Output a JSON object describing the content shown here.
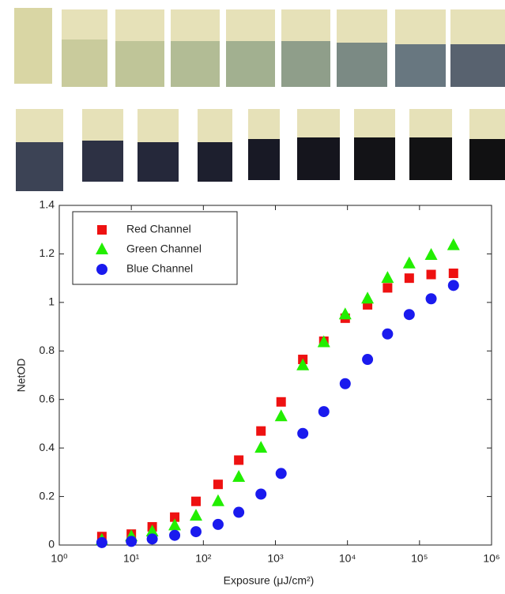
{
  "chart_data": {
    "type": "scatter",
    "xlabel": "Exposure (μJ/cm²)",
    "ylabel": "NetOD",
    "x": [
      3.9,
      10,
      19.5,
      40,
      79,
      160,
      310,
      630,
      1200,
      2400,
      4700,
      9300,
      19000,
      36000,
      72000,
      145000,
      296000
    ],
    "series": [
      {
        "name": "Red Channel",
        "color": "#ee1111",
        "marker": "square",
        "values": [
          0.035,
          0.045,
          0.075,
          0.115,
          0.18,
          0.25,
          0.35,
          0.47,
          0.59,
          0.765,
          0.84,
          0.935,
          0.99,
          1.06,
          1.1,
          1.115,
          1.12
        ]
      },
      {
        "name": "Green Channel",
        "color": "#22ee00",
        "marker": "triangle",
        "values": [
          0.02,
          0.035,
          0.055,
          0.08,
          0.12,
          0.18,
          0.28,
          0.4,
          0.53,
          0.74,
          0.835,
          0.95,
          1.015,
          1.1,
          1.16,
          1.195,
          1.235
        ]
      },
      {
        "name": "Blue Channel",
        "color": "#1a1aee",
        "marker": "circle",
        "values": [
          0.01,
          0.015,
          0.025,
          0.04,
          0.055,
          0.085,
          0.135,
          0.21,
          0.295,
          0.46,
          0.55,
          0.665,
          0.765,
          0.87,
          0.95,
          1.015,
          1.07
        ]
      }
    ],
    "xscale": "log",
    "xlim": [
      1,
      1000000
    ],
    "xticks": [
      {
        "value": 1,
        "label": "10⁰"
      },
      {
        "value": 10,
        "label": "10¹"
      },
      {
        "value": 100,
        "label": "10²"
      },
      {
        "value": 1000,
        "label": "10³"
      },
      {
        "value": 10000,
        "label": "10⁴"
      },
      {
        "value": 100000,
        "label": "10⁵"
      },
      {
        "value": 1000000,
        "label": "10⁶"
      }
    ],
    "ylim": [
      0,
      1.4
    ],
    "yticks": [
      0,
      0.2,
      0.4,
      0.6,
      0.8,
      1,
      1.2,
      1.4
    ],
    "legend": "upper left",
    "grid": false
  }
}
